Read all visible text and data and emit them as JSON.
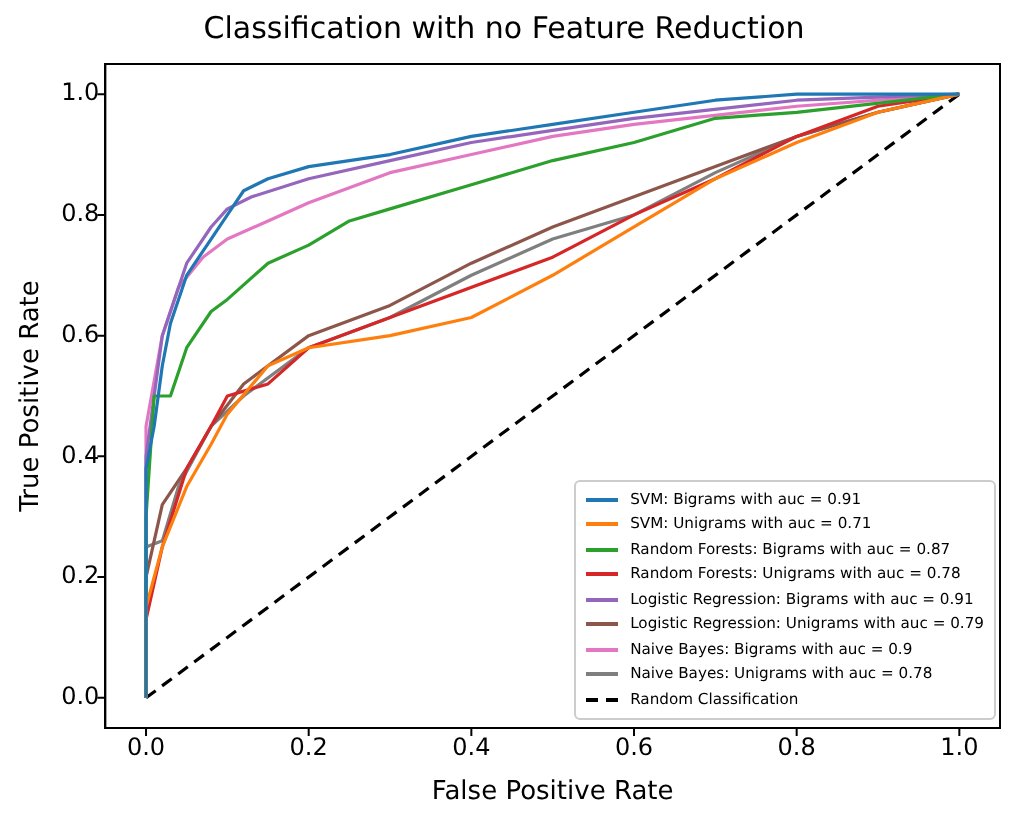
{
  "chart_data": {
    "type": "line",
    "title": "Classification with no Feature Reduction",
    "xlabel": "False Positive Rate",
    "ylabel": "True Positive Rate",
    "xlim": [
      -0.05,
      1.05
    ],
    "ylim": [
      -0.05,
      1.05
    ],
    "xticks": [
      {
        "value": 0,
        "label": "0.0"
      },
      {
        "value": 0.2,
        "label": "0.2"
      },
      {
        "value": 0.4,
        "label": "0.4"
      },
      {
        "value": 0.6,
        "label": "0.6"
      },
      {
        "value": 0.8,
        "label": "0.8"
      },
      {
        "value": 1,
        "label": "1.0"
      }
    ],
    "yticks": [
      {
        "value": 0,
        "label": "0.0"
      },
      {
        "value": 0.2,
        "label": "0.2"
      },
      {
        "value": 0.4,
        "label": "0.4"
      },
      {
        "value": 0.6,
        "label": "0.6"
      },
      {
        "value": 0.8,
        "label": "0.8"
      },
      {
        "value": 1,
        "label": "1.0"
      }
    ],
    "grid": false,
    "legend": "bottom right",
    "marker": "none",
    "line_style": "solid",
    "series": [
      {
        "name": "SVM: Bigrams with auc = 0.91",
        "color": "#1f77b4",
        "x": [
          0,
          0,
          0.01,
          0.02,
          0.03,
          0.05,
          0.08,
          0.1,
          0.12,
          0.15,
          0.2,
          0.3,
          0.4,
          0.5,
          0.6,
          0.7,
          0.8,
          1
        ],
        "values": [
          0,
          0.38,
          0.45,
          0.55,
          0.62,
          0.7,
          0.76,
          0.8,
          0.84,
          0.86,
          0.88,
          0.9,
          0.93,
          0.95,
          0.97,
          0.99,
          1,
          1
        ]
      },
      {
        "name": "SVM: Unigrams with auc = 0.71",
        "color": "#ff7f0e",
        "x": [
          0,
          0,
          0.02,
          0.05,
          0.08,
          0.1,
          0.15,
          0.2,
          0.3,
          0.4,
          0.5,
          0.6,
          0.7,
          0.8,
          0.9,
          1
        ],
        "values": [
          0,
          0.15,
          0.25,
          0.35,
          0.42,
          0.47,
          0.55,
          0.58,
          0.6,
          0.63,
          0.7,
          0.78,
          0.86,
          0.92,
          0.97,
          1
        ]
      },
      {
        "name": "Random Forests: Bigrams with auc = 0.87",
        "color": "#2ca02c",
        "x": [
          0,
          0,
          0.01,
          0.03,
          0.05,
          0.08,
          0.1,
          0.15,
          0.2,
          0.25,
          0.3,
          0.4,
          0.5,
          0.6,
          0.7,
          0.8,
          1
        ],
        "values": [
          0,
          0.3,
          0.5,
          0.5,
          0.58,
          0.64,
          0.66,
          0.72,
          0.75,
          0.79,
          0.81,
          0.85,
          0.89,
          0.92,
          0.96,
          0.97,
          1
        ]
      },
      {
        "name": "Random Forests: Unigrams with auc = 0.78",
        "color": "#d62728",
        "x": [
          0,
          0,
          0.02,
          0.05,
          0.08,
          0.1,
          0.15,
          0.2,
          0.3,
          0.5,
          0.6,
          0.7,
          0.8,
          0.9,
          1
        ],
        "values": [
          0,
          0.13,
          0.25,
          0.38,
          0.45,
          0.5,
          0.52,
          0.58,
          0.63,
          0.73,
          0.8,
          0.86,
          0.93,
          0.98,
          1
        ]
      },
      {
        "name": "Logistic Regression: Bigrams with auc = 0.91",
        "color": "#9467bd",
        "x": [
          0,
          0,
          0.02,
          0.05,
          0.08,
          0.1,
          0.13,
          0.2,
          0.3,
          0.4,
          0.5,
          0.6,
          0.8,
          1
        ],
        "values": [
          0,
          0.4,
          0.6,
          0.72,
          0.78,
          0.81,
          0.83,
          0.86,
          0.89,
          0.92,
          0.94,
          0.96,
          0.99,
          1
        ]
      },
      {
        "name": "Logistic Regression: Unigrams with auc = 0.79",
        "color": "#8c564b",
        "x": [
          0,
          0,
          0.02,
          0.05,
          0.08,
          0.12,
          0.15,
          0.2,
          0.3,
          0.4,
          0.5,
          0.6,
          0.7,
          0.8,
          0.9,
          1
        ],
        "values": [
          0,
          0.2,
          0.32,
          0.38,
          0.45,
          0.52,
          0.55,
          0.6,
          0.65,
          0.72,
          0.78,
          0.83,
          0.88,
          0.93,
          0.97,
          1
        ]
      },
      {
        "name": "Naive Bayes: Bigrams with auc = 0.9",
        "color": "#e377c2",
        "x": [
          0,
          0,
          0.02,
          0.04,
          0.07,
          0.1,
          0.15,
          0.2,
          0.3,
          0.4,
          0.5,
          0.6,
          0.8,
          1
        ],
        "values": [
          0,
          0.45,
          0.6,
          0.68,
          0.73,
          0.76,
          0.79,
          0.82,
          0.87,
          0.9,
          0.93,
          0.95,
          0.98,
          1
        ]
      },
      {
        "name": "Naive Bayes: Unigrams with auc = 0.78",
        "color": "#7f7f7f",
        "x": [
          0,
          0,
          0.02,
          0.04,
          0.08,
          0.12,
          0.2,
          0.3,
          0.4,
          0.5,
          0.6,
          0.7,
          0.8,
          0.9,
          1
        ],
        "values": [
          0,
          0.25,
          0.26,
          0.35,
          0.45,
          0.5,
          0.58,
          0.63,
          0.7,
          0.76,
          0.8,
          0.87,
          0.93,
          0.97,
          1
        ]
      },
      {
        "name": "Random Classification",
        "color": "#000000",
        "line_style": "dashed",
        "x": [
          0,
          1
        ],
        "values": [
          0,
          1
        ]
      }
    ]
  }
}
